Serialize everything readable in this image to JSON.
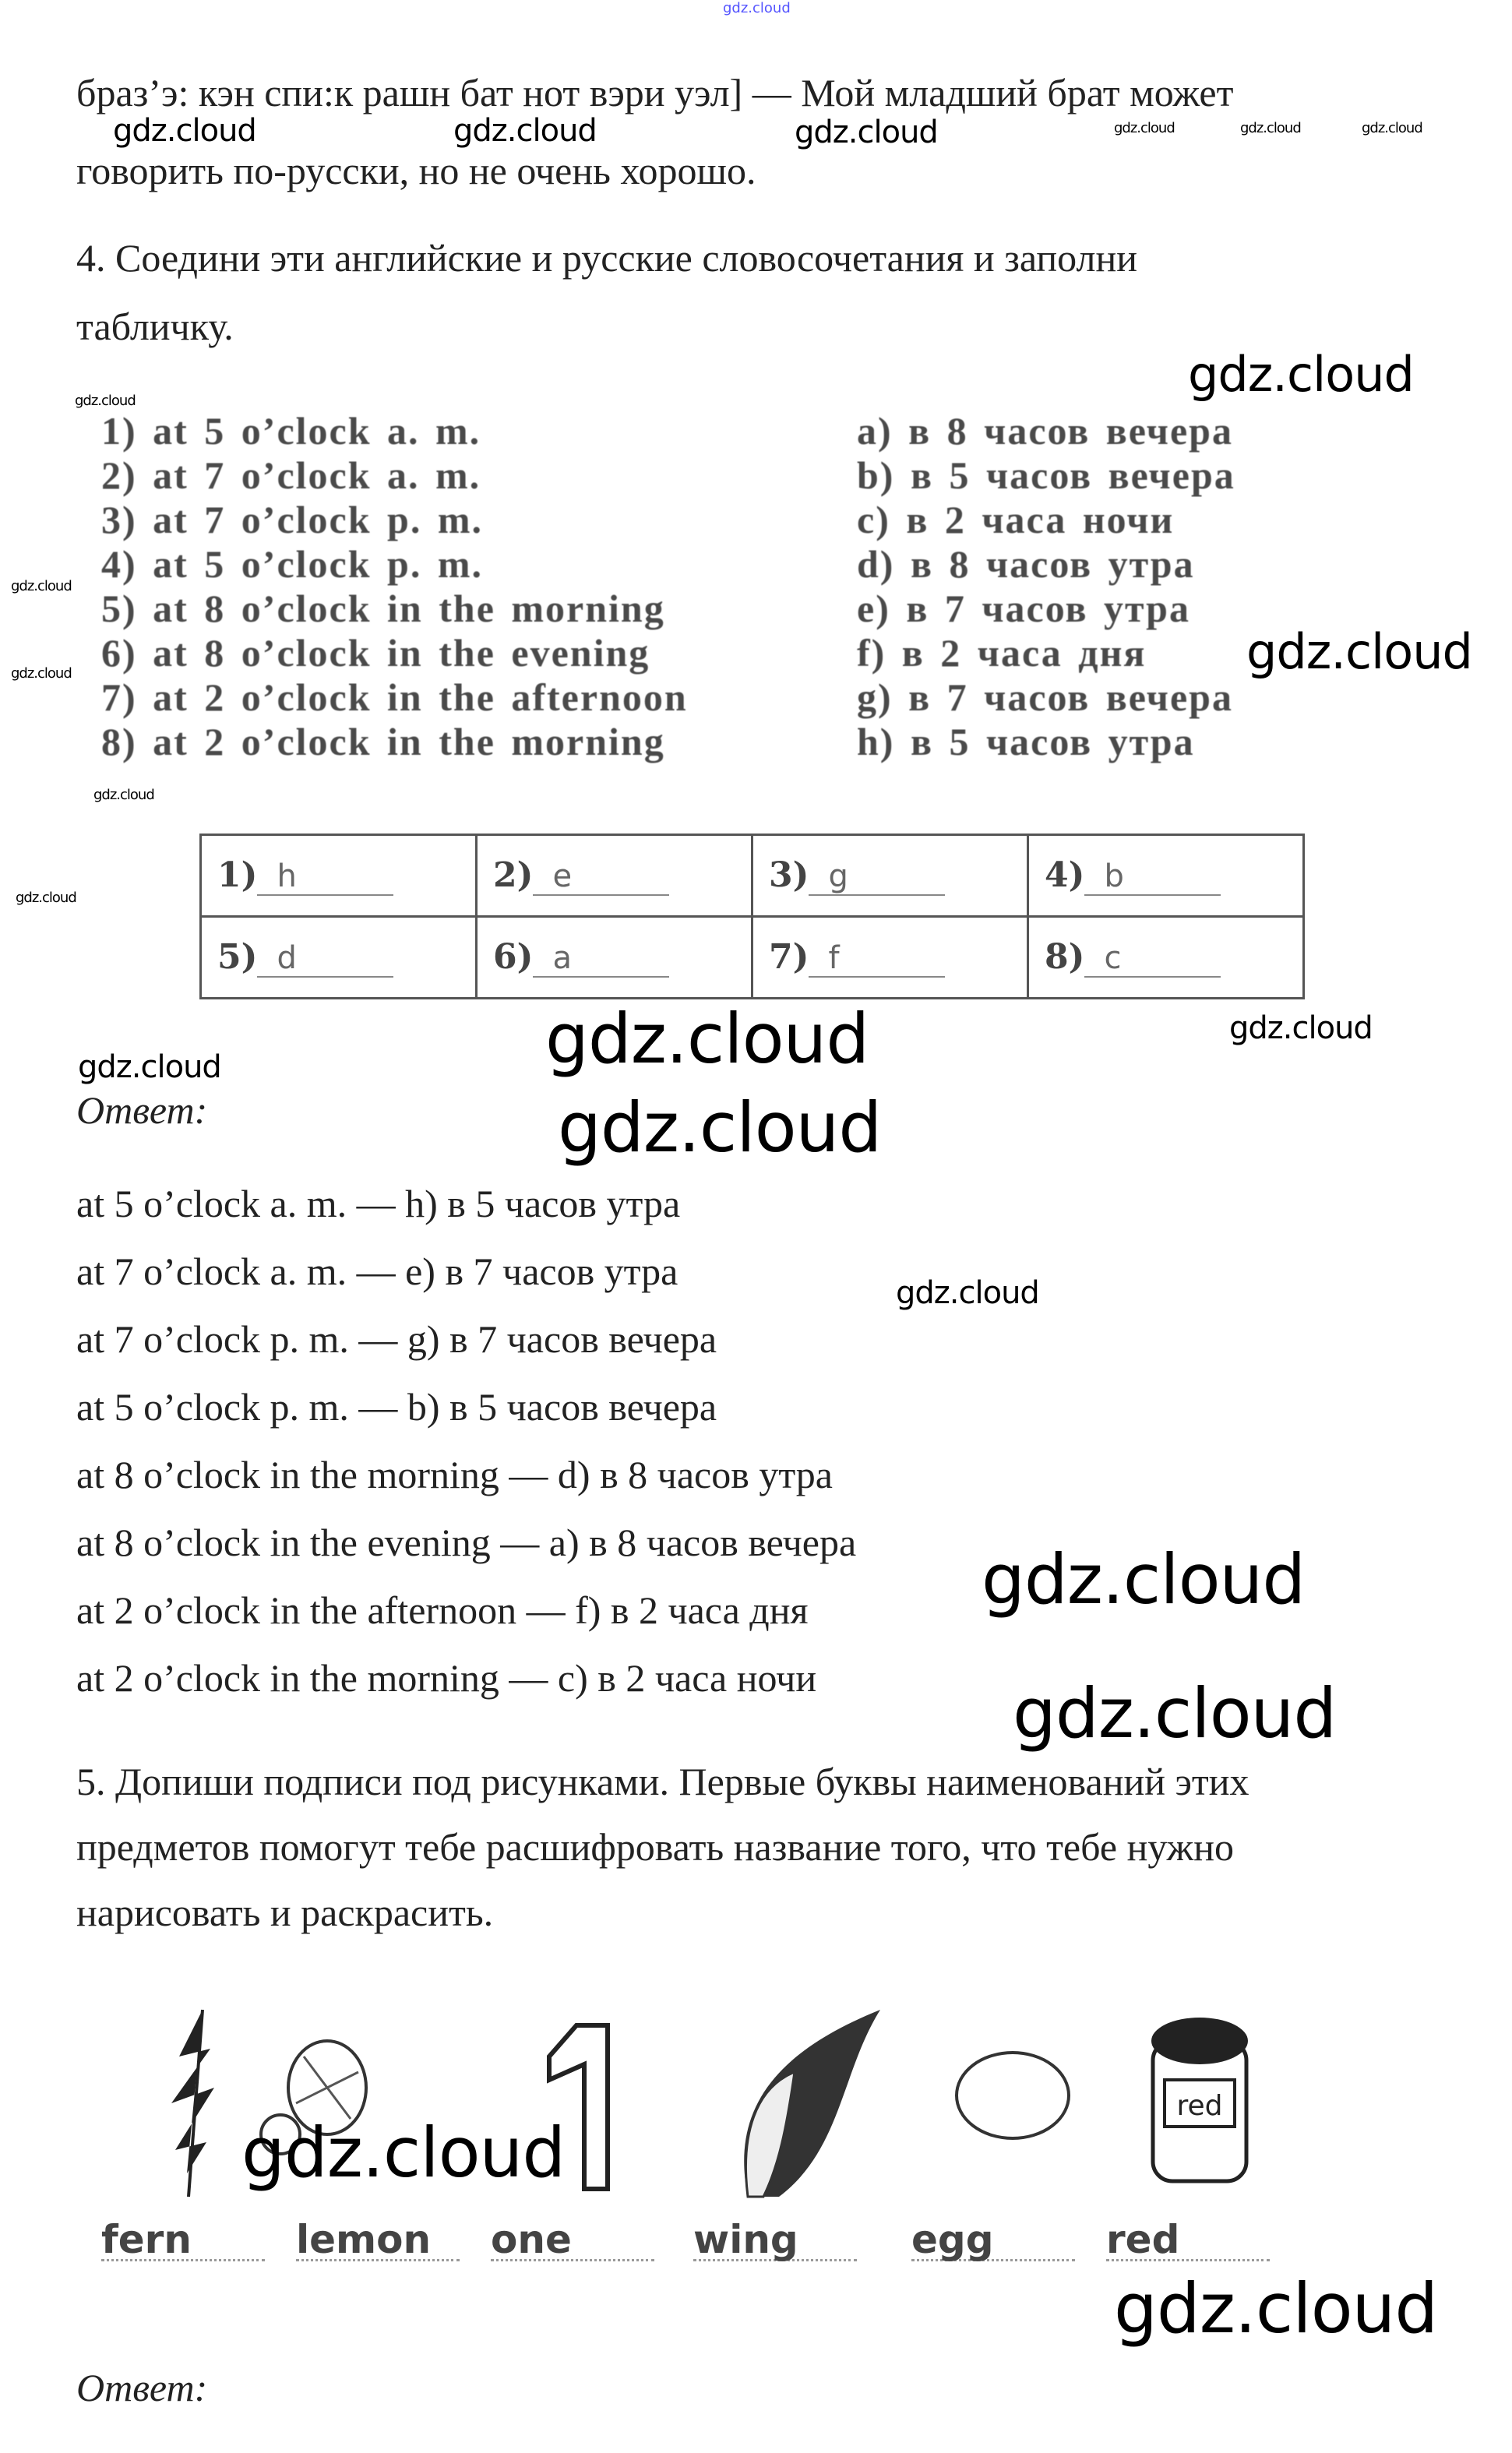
{
  "top_watermark": "gdz.cloud",
  "intro": {
    "line1": "браз’э: кэн спи:к рашн бат нот вэри уэл] — Мой младший брат может",
    "line2": "говорить по-русски, но не очень хорошо."
  },
  "watermark": "gdz.cloud",
  "task4": {
    "title_line1": "4. Соедини эти английские и русские словосочетания и заполни",
    "title_line2": "табличку.",
    "english": [
      "1) at 5 o’clock a. m.",
      "2) at 7 o’clock a. m.",
      "3) at 7 o’clock p. m.",
      "4) at 5 o’clock p. m.",
      "5) at 8 o’clock in the morning",
      "6) at 8 o’clock in the evening",
      "7) at 2 o’clock in the afternoon",
      "8) at 2 o’clock in the morning"
    ],
    "russian": [
      "a) в 8 часов вечера",
      "b) в 5 часов вечера",
      "c) в 2 часа ночи",
      "d) в 8 часов утра",
      "e) в 7 часов утра",
      "f) в 2 часа дня",
      "g) в 7 часов вечера",
      "h) в 5 часов утра"
    ],
    "table": [
      [
        {
          "n": "1)",
          "a": "h"
        },
        {
          "n": "2)",
          "a": "e"
        },
        {
          "n": "3)",
          "a": "g"
        },
        {
          "n": "4)",
          "a": "b"
        }
      ],
      [
        {
          "n": "5)",
          "a": "d"
        },
        {
          "n": "6)",
          "a": "a"
        },
        {
          "n": "7)",
          "a": "f"
        },
        {
          "n": "8)",
          "a": "c"
        }
      ]
    ],
    "answer_label": "Ответ:",
    "answers": [
      "at 5 o’clock a. m. — h) в 5 часов утра",
      "at 7 o’clock a. m. — e) в 7 часов утра",
      "at 7 o’clock p. m. — g) в 7 часов вечера",
      "at 5 o’clock p. m. — b) в 5 часов вечера",
      "at 8 o’clock in the morning — d) в 8 часов утра",
      "at 8 o’clock in the evening — a) в 8 часов вечера",
      "at 2 o’clock in the afternoon — f) в 2 часа дня",
      "at 2 o’clock in the morning — c) в 2 часа ночи"
    ]
  },
  "task5": {
    "line1": "5. Допиши подписи под рисунками. Первые буквы наименований этих",
    "line2": "предметов помогут тебе расшифровать название того, что тебе нужно",
    "line3": "нарисовать и раскрасить.",
    "pictures": [
      "fern",
      "lemon",
      "one",
      "wing",
      "egg",
      "red"
    ],
    "jar_label": "red",
    "answer_label": "Ответ:"
  }
}
